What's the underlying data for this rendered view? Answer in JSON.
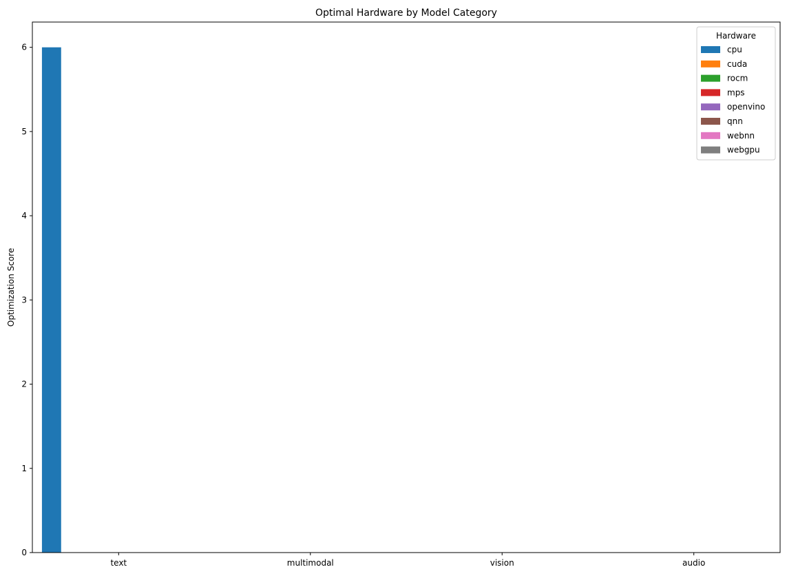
{
  "chart_data": {
    "type": "bar",
    "title": "Optimal Hardware by Model Category",
    "xlabel": "",
    "ylabel": "Optimization Score",
    "categories": [
      "text",
      "multimodal",
      "vision",
      "audio"
    ],
    "ylim": [
      0,
      6.3
    ],
    "yticks": [
      0,
      1,
      2,
      3,
      4,
      5,
      6
    ],
    "grid": false,
    "legend": {
      "title": "Hardware",
      "placement": "top-right"
    },
    "series": [
      {
        "name": "cpu",
        "color": "#1f77b4",
        "values": [
          6,
          0,
          0,
          0
        ]
      },
      {
        "name": "cuda",
        "color": "#ff7f0e",
        "values": [
          0,
          0,
          0,
          0
        ]
      },
      {
        "name": "rocm",
        "color": "#2ca02c",
        "values": [
          0,
          0,
          0,
          0
        ]
      },
      {
        "name": "mps",
        "color": "#d62728",
        "values": [
          0,
          0,
          0,
          0
        ]
      },
      {
        "name": "openvino",
        "color": "#9467bd",
        "values": [
          0,
          0,
          0,
          0
        ]
      },
      {
        "name": "qnn",
        "color": "#8c564b",
        "values": [
          0,
          0,
          0,
          0
        ]
      },
      {
        "name": "webnn",
        "color": "#e377c2",
        "values": [
          0,
          0,
          0,
          0
        ]
      },
      {
        "name": "webgpu",
        "color": "#7f7f7f",
        "values": [
          0,
          0,
          0,
          0
        ]
      }
    ]
  }
}
